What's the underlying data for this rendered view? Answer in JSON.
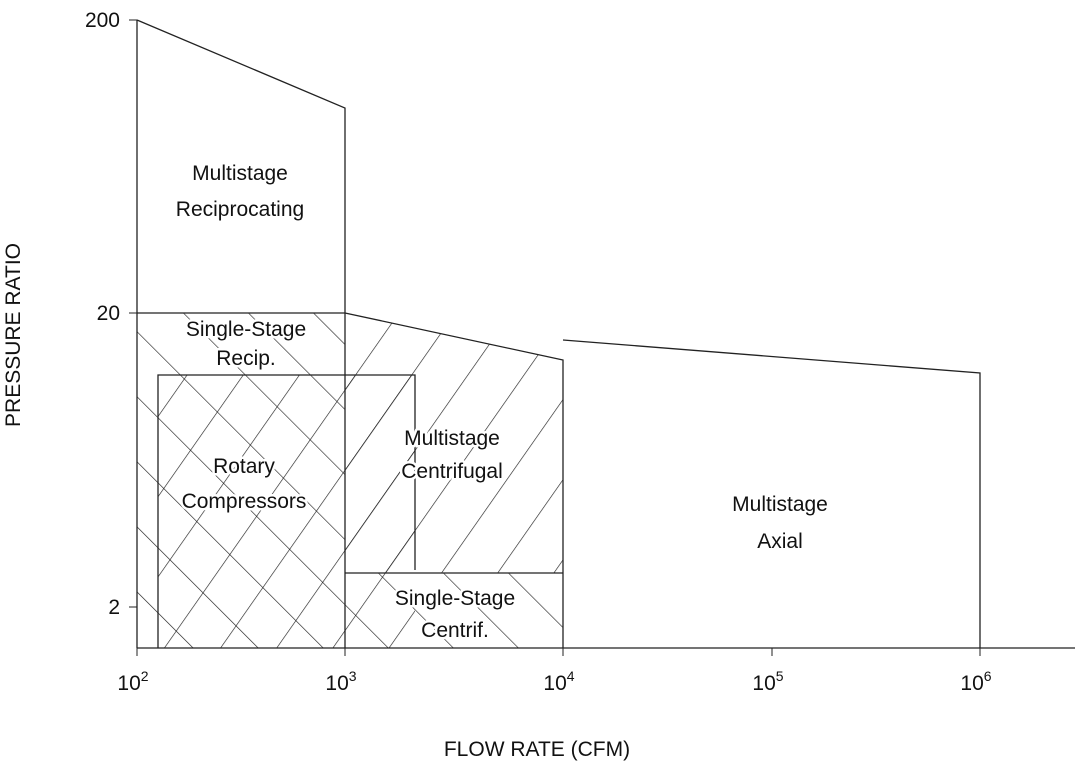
{
  "x_axis": {
    "label": "FLOW RATE (CFM)",
    "ticks": [
      {
        "base": "10",
        "exp": "2"
      },
      {
        "base": "10",
        "exp": "3"
      },
      {
        "base": "10",
        "exp": "4"
      },
      {
        "base": "10",
        "exp": "5"
      },
      {
        "base": "10",
        "exp": "6"
      }
    ]
  },
  "y_axis": {
    "label": "PRESSURE RATIO",
    "ticks": [
      "200",
      "20",
      "2"
    ]
  },
  "regions": [
    {
      "lines": [
        "Multistage",
        "Reciprocating"
      ]
    },
    {
      "lines": [
        "Single-Stage",
        "Recip."
      ]
    },
    {
      "lines": [
        "Rotary",
        "Compressors"
      ]
    },
    {
      "lines": [
        "Multistage",
        "Centrifugal"
      ]
    },
    {
      "lines": [
        "Multistage",
        "Axial"
      ]
    },
    {
      "lines": [
        "Single-Stage",
        "Centrif."
      ]
    }
  ]
}
